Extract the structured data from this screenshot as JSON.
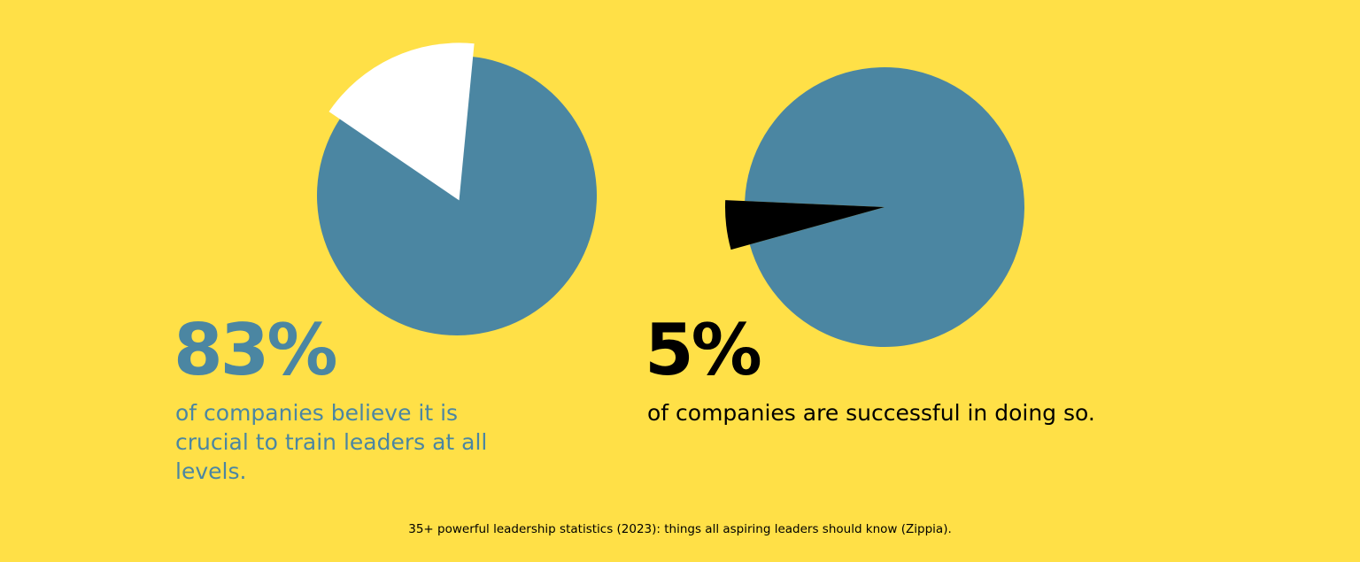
{
  "colors": {
    "background": "#FFE047",
    "pie_main": "#4B86A2",
    "highlight_1": "#FFFFFF",
    "highlight_2": "#000000"
  },
  "chart_data": [
    {
      "type": "pie",
      "slices": [
        {
          "value": 83,
          "color": "#4B86A2"
        },
        {
          "value": 17,
          "color": "#FFFFFF",
          "exploded": true
        }
      ],
      "stat": "83%",
      "description": "of companies believe it is crucial to train leaders at all levels."
    },
    {
      "type": "pie",
      "slices": [
        {
          "value": 95,
          "color": "#4B86A2"
        },
        {
          "value": 5,
          "color": "#000000",
          "exploded": true
        }
      ],
      "stat": "5%",
      "description": "of companies are successful in doing so."
    }
  ],
  "source": "35+ powerful leadership statistics (2023): things all aspiring leaders should know (Zippia)."
}
